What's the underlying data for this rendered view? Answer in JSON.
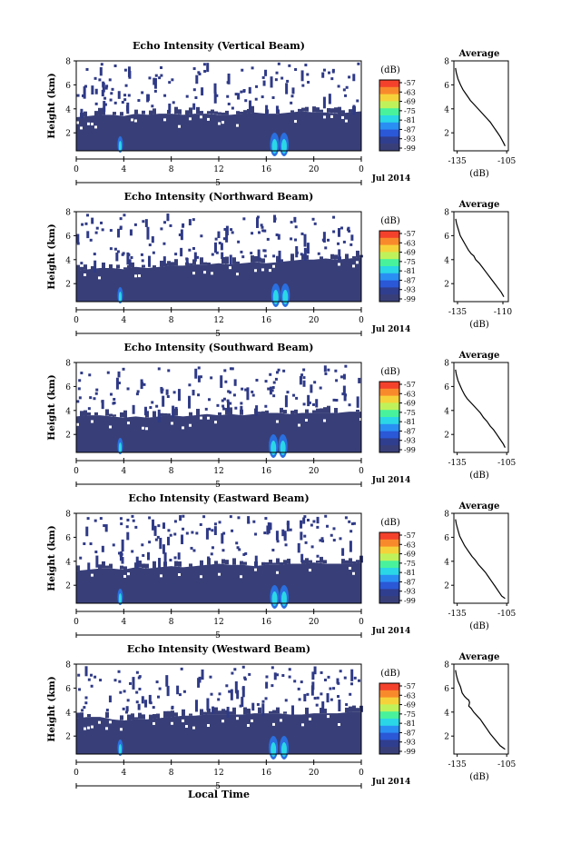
{
  "figure": {
    "xaxis_title": "Local Time",
    "date_label": "Jul 2014",
    "colorbar_unit": "(dB)",
    "colorbar_ticks": [
      "-57",
      "-63",
      "-69",
      "-75",
      "-81",
      "-87",
      "-93",
      "-99"
    ],
    "colorbar_colors": [
      "#f4412c",
      "#f98a2c",
      "#f6d23a",
      "#bff25a",
      "#48f29c",
      "#2ad7e6",
      "#2a8ff3",
      "#2a58d6",
      "#303e8f",
      "#383f78"
    ],
    "time_ticks": [
      "0",
      "4",
      "8",
      "12",
      "16",
      "20",
      "0"
    ],
    "day_label": "5",
    "height_ticks": [
      "2",
      "4",
      "6",
      "8"
    ],
    "ylabel": "Height (km)",
    "avg_title": "Average",
    "avg_xlabel": "(dB)"
  },
  "chart_data": [
    {
      "type": "heatmap",
      "title": "Echo Intensity (Vertical Beam)",
      "xlabel": "Local Time",
      "ylabel": "Height (km)",
      "xlim": [
        0,
        24
      ],
      "ylim": [
        0.5,
        8
      ],
      "layer_top_km": [
        3.3,
        3.4,
        3.5,
        3.5,
        3.4,
        3.6,
        3.5,
        3.6,
        3.6,
        3.5,
        3.6,
        3.6,
        3.5,
        3.5,
        3.6,
        3.7,
        3.6,
        3.6,
        3.7,
        3.8,
        3.7,
        3.7,
        3.6,
        3.7,
        3.8
      ],
      "plumes_local_time": [
        3.7,
        16.7,
        17.5
      ],
      "colorbar": {
        "label": "(dB)",
        "range": [
          -99,
          -57
        ]
      }
    },
    {
      "type": "line",
      "title": "Average",
      "xlabel": "(dB)",
      "xticks": [
        "-135",
        "-105"
      ],
      "xlim": [
        -137,
        -104
      ],
      "ylim": [
        0.5,
        8
      ],
      "x": [
        -136,
        -135.5,
        -134.5,
        -133,
        -131.5,
        -130,
        -128.5,
        -127,
        -125,
        -123,
        -121,
        -119,
        -117,
        -115,
        -113,
        -111,
        -109,
        -107,
        -106
      ],
      "y": [
        7.4,
        7.0,
        6.5,
        6.0,
        5.6,
        5.3,
        5.0,
        4.7,
        4.4,
        4.1,
        3.8,
        3.5,
        3.2,
        2.9,
        2.5,
        2.1,
        1.7,
        1.2,
        0.9
      ]
    },
    {
      "type": "heatmap",
      "title": "Echo Intensity (Northward Beam)",
      "xlabel": "Local Time",
      "ylabel": "Height (km)",
      "xlim": [
        0,
        24
      ],
      "ylim": [
        0.5,
        8
      ],
      "layer_top_km": [
        3.1,
        3.2,
        3.3,
        3.3,
        3.2,
        3.4,
        3.3,
        3.4,
        3.5,
        3.5,
        3.6,
        3.6,
        3.7,
        3.6,
        3.7,
        3.8,
        3.7,
        3.8,
        3.9,
        4.0,
        4.0,
        4.1,
        4.0,
        4.1,
        4.2
      ],
      "plumes_local_time": [
        3.7,
        16.8,
        17.6
      ],
      "colorbar": {
        "label": "(dB)",
        "range": [
          -99,
          -57
        ]
      }
    },
    {
      "type": "line",
      "title": "Average",
      "xlabel": "(dB)",
      "xticks": [
        "-135",
        "-110"
      ],
      "xlim": [
        -137,
        -107
      ],
      "ylim": [
        0.5,
        8
      ],
      "x": [
        -136,
        -135.5,
        -134.5,
        -133.5,
        -132,
        -130.5,
        -129,
        -127.5,
        -126,
        -125,
        -123,
        -121,
        -119,
        -117,
        -115,
        -113,
        -111,
        -109.5
      ],
      "y": [
        7.4,
        7.0,
        6.5,
        6.0,
        5.6,
        5.2,
        4.8,
        4.5,
        4.3,
        4.0,
        3.7,
        3.3,
        2.9,
        2.5,
        2.1,
        1.7,
        1.3,
        0.9
      ]
    },
    {
      "type": "heatmap",
      "title": "Echo Intensity (Southward Beam)",
      "xlabel": "Local Time",
      "ylabel": "Height (km)",
      "xlim": [
        0,
        24
      ],
      "ylim": [
        0.5,
        8
      ],
      "layer_top_km": [
        3.5,
        3.6,
        3.6,
        3.5,
        3.4,
        3.5,
        3.4,
        3.5,
        3.6,
        3.5,
        3.6,
        3.7,
        3.6,
        3.7,
        3.6,
        3.7,
        3.8,
        3.8,
        3.7,
        3.8,
        3.8,
        3.8,
        3.8,
        3.9,
        3.9
      ],
      "plumes_local_time": [
        3.7,
        16.6,
        17.4
      ],
      "colorbar": {
        "label": "(dB)",
        "range": [
          -99,
          -57
        ]
      }
    },
    {
      "type": "line",
      "title": "Average",
      "xlabel": "(dB)",
      "xticks": [
        "-135",
        "-105"
      ],
      "xlim": [
        -137,
        -104
      ],
      "ylim": [
        0.5,
        8
      ],
      "x": [
        -136,
        -135.5,
        -134.5,
        -133,
        -132,
        -130.5,
        -129,
        -127,
        -125,
        -123,
        -121,
        -119,
        -117,
        -115,
        -113,
        -111,
        -109,
        -107,
        -106
      ],
      "y": [
        7.4,
        7.0,
        6.5,
        6.0,
        5.7,
        5.3,
        5.0,
        4.7,
        4.4,
        4.1,
        3.8,
        3.4,
        3.1,
        2.7,
        2.4,
        2.0,
        1.6,
        1.2,
        0.9
      ]
    },
    {
      "type": "heatmap",
      "title": "Echo Intensity (Eastward Beam)",
      "xlabel": "Local Time",
      "ylabel": "Height (km)",
      "xlim": [
        0,
        24
      ],
      "ylim": [
        0.5,
        8
      ],
      "layer_top_km": [
        3.2,
        3.3,
        3.4,
        3.4,
        3.3,
        3.5,
        3.4,
        3.5,
        3.6,
        3.5,
        3.6,
        3.7,
        3.8,
        3.7,
        3.7,
        3.6,
        3.7,
        3.7,
        3.8,
        3.8,
        3.9,
        3.8,
        3.8,
        3.8,
        3.9
      ],
      "plumes_local_time": [
        3.7,
        16.7,
        17.5
      ],
      "colorbar": {
        "label": "(dB)",
        "range": [
          -99,
          -57
        ]
      }
    },
    {
      "type": "line",
      "title": "Average",
      "xlabel": "(dB)",
      "xticks": [
        "-135",
        "-105"
      ],
      "xlim": [
        -137,
        -104
      ],
      "ylim": [
        0.5,
        8
      ],
      "x": [
        -136,
        -135.5,
        -134.5,
        -133.5,
        -132,
        -130.5,
        -129,
        -127.5,
        -126,
        -124,
        -122,
        -120,
        -118,
        -116,
        -114,
        -112,
        -110,
        -108,
        -106
      ],
      "y": [
        7.5,
        7.1,
        6.6,
        6.1,
        5.7,
        5.3,
        5.0,
        4.7,
        4.4,
        4.1,
        3.7,
        3.4,
        3.1,
        2.7,
        2.3,
        1.9,
        1.5,
        1.1,
        0.9
      ]
    },
    {
      "type": "heatmap",
      "title": "Echo Intensity (Westward Beam)",
      "xlabel": "Local Time",
      "ylabel": "Height (km)",
      "xlim": [
        0,
        24
      ],
      "ylim": [
        0.5,
        8
      ],
      "layer_top_km": [
        3.5,
        3.6,
        3.6,
        3.4,
        3.3,
        3.4,
        3.4,
        3.5,
        3.6,
        3.7,
        3.7,
        3.8,
        3.8,
        3.8,
        3.8,
        3.9,
        3.9,
        3.9,
        3.8,
        3.8,
        3.9,
        3.9,
        3.9,
        4.0,
        4.0
      ],
      "plumes_local_time": [
        3.7,
        16.6,
        17.5
      ],
      "colorbar": {
        "label": "(dB)",
        "range": [
          -99,
          -57
        ]
      }
    },
    {
      "type": "line",
      "title": "Average",
      "xlabel": "(dB)",
      "xticks": [
        "-135",
        "-105"
      ],
      "xlim": [
        -137,
        -104
      ],
      "ylim": [
        0.5,
        8
      ],
      "x": [
        -136,
        -135.5,
        -134.5,
        -133,
        -132,
        -130.5,
        -129,
        -128,
        -127.5,
        -128,
        -126.5,
        -125,
        -123,
        -121,
        -119,
        -117,
        -115,
        -112,
        -109,
        -106
      ],
      "y": [
        7.5,
        7.1,
        6.6,
        6.1,
        5.6,
        5.3,
        5.1,
        5.0,
        4.8,
        4.5,
        4.3,
        4.0,
        3.7,
        3.4,
        3.0,
        2.6,
        2.2,
        1.7,
        1.2,
        0.9
      ]
    }
  ]
}
